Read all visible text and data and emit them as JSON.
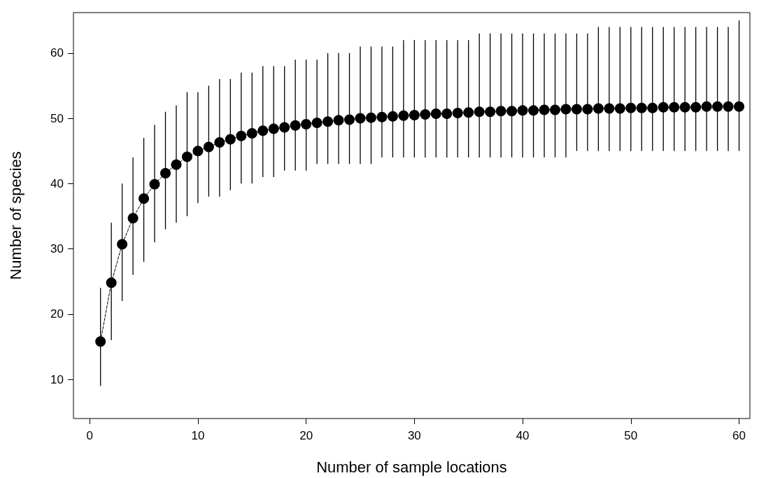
{
  "chart_data": {
    "type": "line",
    "xlabel": "Number of sample locations",
    "ylabel": "Number of species",
    "x": [
      1,
      2,
      3,
      4,
      5,
      6,
      7,
      8,
      9,
      10,
      11,
      12,
      13,
      14,
      15,
      16,
      17,
      18,
      19,
      20,
      21,
      22,
      23,
      24,
      25,
      26,
      27,
      28,
      29,
      30,
      31,
      32,
      33,
      34,
      35,
      36,
      37,
      38,
      39,
      40,
      41,
      42,
      43,
      44,
      45,
      46,
      47,
      48,
      49,
      50,
      51,
      52,
      53,
      54,
      55,
      56,
      57,
      58,
      59,
      60
    ],
    "series": [
      {
        "color": "#000000",
        "values": [
          15.8,
          24.8,
          30.7,
          34.7,
          37.7,
          39.9,
          41.6,
          42.9,
          44.1,
          45.0,
          45.6,
          46.3,
          46.8,
          47.3,
          47.7,
          48.1,
          48.4,
          48.6,
          48.9,
          49.1,
          49.3,
          49.5,
          49.7,
          49.8,
          50.0,
          50.1,
          50.2,
          50.3,
          50.4,
          50.5,
          50.6,
          50.7,
          50.7,
          50.8,
          50.9,
          51.0,
          51.0,
          51.1,
          51.1,
          51.2,
          51.2,
          51.3,
          51.3,
          51.4,
          51.4,
          51.4,
          51.5,
          51.5,
          51.5,
          51.6,
          51.6,
          51.6,
          51.7,
          51.7,
          51.7,
          51.7,
          51.8,
          51.8,
          51.8,
          51.8
        ],
        "errors": [
          [
            9,
            24
          ],
          [
            16,
            34
          ],
          [
            22,
            40
          ],
          [
            26,
            44
          ],
          [
            28,
            47
          ],
          [
            31,
            49
          ],
          [
            33,
            51
          ],
          [
            34,
            52
          ],
          [
            35,
            54
          ],
          [
            37,
            54
          ],
          [
            38,
            55
          ],
          [
            38,
            56
          ],
          [
            39,
            56
          ],
          [
            40,
            57
          ],
          [
            40,
            57
          ],
          [
            41,
            58
          ],
          [
            41,
            58
          ],
          [
            42,
            58
          ],
          [
            42,
            59
          ],
          [
            42,
            59
          ],
          [
            43,
            59
          ],
          [
            43,
            60
          ],
          [
            43,
            60
          ],
          [
            43,
            60
          ],
          [
            43,
            61
          ],
          [
            43,
            61
          ],
          [
            44,
            61
          ],
          [
            44,
            61
          ],
          [
            44,
            62
          ],
          [
            44,
            62
          ],
          [
            44,
            62
          ],
          [
            44,
            62
          ],
          [
            44,
            62
          ],
          [
            44,
            62
          ],
          [
            44,
            62
          ],
          [
            44,
            63
          ],
          [
            44,
            63
          ],
          [
            44,
            63
          ],
          [
            44,
            63
          ],
          [
            44,
            63
          ],
          [
            44,
            63
          ],
          [
            44,
            63
          ],
          [
            44,
            63
          ],
          [
            44,
            63
          ],
          [
            45,
            63
          ],
          [
            45,
            63
          ],
          [
            45,
            64
          ],
          [
            45,
            64
          ],
          [
            45,
            64
          ],
          [
            45,
            64
          ],
          [
            45,
            64
          ],
          [
            45,
            64
          ],
          [
            45,
            64
          ],
          [
            45,
            64
          ],
          [
            45,
            64
          ],
          [
            45,
            64
          ],
          [
            45,
            64
          ],
          [
            45,
            64
          ],
          [
            45,
            64
          ],
          [
            45,
            65
          ]
        ]
      }
    ],
    "xlim": [
      -1.5,
      61
    ],
    "xticks": [
      0,
      10,
      20,
      30,
      40,
      50,
      60
    ],
    "ylim": [
      4,
      66.2
    ],
    "yticks": [
      10,
      20,
      30,
      40,
      50,
      60
    ],
    "marker": "circle",
    "line_style": "dashed"
  }
}
